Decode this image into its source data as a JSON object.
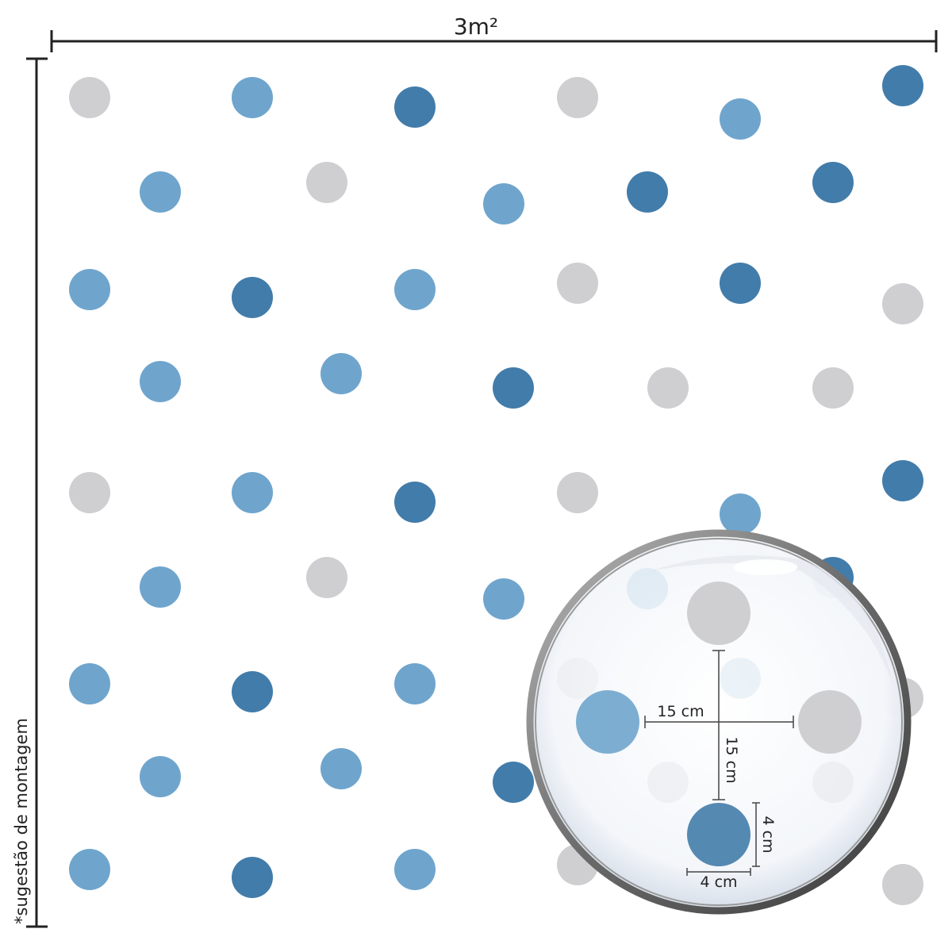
{
  "dimensions": {
    "width_label": "3m²",
    "height_label": "*sugestão de montagem"
  },
  "colors": {
    "gray": "#cfcfd2",
    "light_blue": "#6fa5cd",
    "dark_blue": "#427caa",
    "line": "#222222"
  },
  "magnifier": {
    "horizontal_spacing": "15 cm",
    "vertical_spacing": "15 cm",
    "dot_height": "4 cm",
    "dot_width": "4 cm"
  }
}
